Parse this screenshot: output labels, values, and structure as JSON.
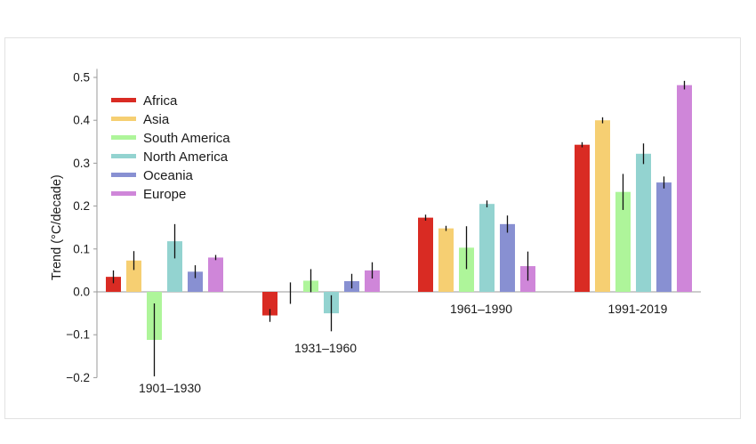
{
  "chart_data": {
    "type": "bar",
    "ylabel": "Trend (°C/decade)",
    "ylim": [
      -0.2,
      0.52
    ],
    "yticks": [
      {
        "value": 0.5,
        "label": "0.5"
      },
      {
        "value": 0.4,
        "label": "0.4"
      },
      {
        "value": 0.3,
        "label": "0.3"
      },
      {
        "value": 0.2,
        "label": "0.2"
      },
      {
        "value": 0.1,
        "label": "0.1"
      },
      {
        "value": 0.0,
        "label": "0.0"
      },
      {
        "value": -0.1,
        "label": "−0.1"
      },
      {
        "value": -0.2,
        "label": "−0.2"
      }
    ],
    "grid": false,
    "legend_position": "top-left",
    "categories": [
      "1901–1930",
      "1931–1960",
      "1961–1990",
      "1991-2019"
    ],
    "category_label_positions": [
      "below",
      "below",
      "above-axis",
      "above-axis"
    ],
    "series": [
      {
        "name": "Africa",
        "color": "#d92b23",
        "values": [
          0.035,
          -0.055,
          0.173,
          0.343
        ],
        "errors": [
          0.015,
          0.015,
          0.007,
          0.006
        ]
      },
      {
        "name": "Asia",
        "color": "#f6cf72",
        "values": [
          0.073,
          null,
          0.148,
          0.4
        ],
        "errors": [
          0.022,
          null,
          0.006,
          0.007
        ]
      },
      {
        "name": "South America",
        "color": "#aef59a",
        "values": [
          -0.112,
          0.026,
          0.103,
          0.233
        ],
        "errors": [
          0.085,
          0.027,
          0.05,
          0.042
        ]
      },
      {
        "name": "North America",
        "color": "#93d3d0",
        "values": [
          0.118,
          -0.05,
          0.205,
          0.322
        ],
        "errors": [
          0.04,
          0.042,
          0.008,
          0.024
        ]
      },
      {
        "name": "Oceania",
        "color": "#8890d2",
        "values": [
          0.047,
          0.025,
          0.158,
          0.255
        ],
        "errors": [
          0.015,
          0.017,
          0.02,
          0.014
        ]
      },
      {
        "name": "Europe",
        "color": "#cf86d9",
        "values": [
          0.08,
          0.05,
          0.06,
          0.482
        ],
        "errors": [
          0.006,
          0.019,
          0.034,
          0.01
        ]
      }
    ],
    "extra_error_bars": [
      {
        "category_index": 1,
        "series_index": 1,
        "low": -0.028,
        "high": 0.022
      }
    ]
  }
}
